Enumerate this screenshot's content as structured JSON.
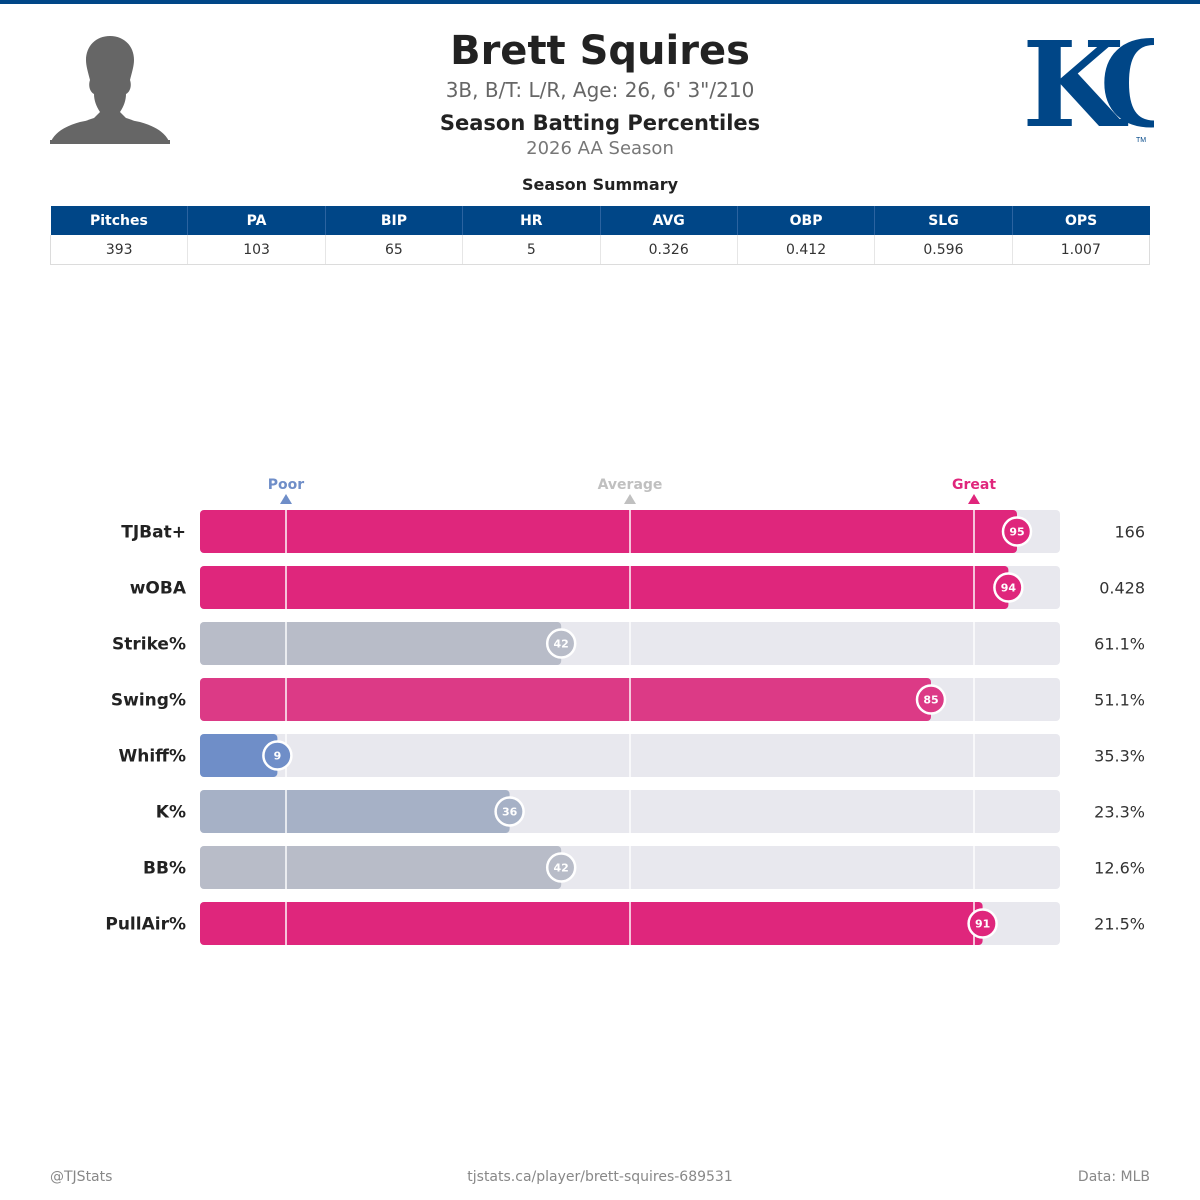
{
  "header": {
    "name": "Brett Squires",
    "bio": "3B, B/T: L/R, Age: 26, 6' 3\"/210",
    "report_title": "Season Batting Percentiles",
    "report_subtitle": "2026 AA Season",
    "logo_text": "KC",
    "logo_tm": "TM"
  },
  "summary": {
    "title": "Season Summary",
    "columns": [
      "Pitches",
      "PA",
      "BIP",
      "HR",
      "AVG",
      "OBP",
      "SLG",
      "OPS"
    ],
    "values": [
      "393",
      "103",
      "65",
      "5",
      "0.326",
      "0.412",
      "0.596",
      "1.007"
    ]
  },
  "chart_data": {
    "type": "bar",
    "orientation": "horizontal",
    "xlim": [
      0,
      100
    ],
    "reference_markers": [
      {
        "label": "Poor",
        "value": 10,
        "color": "#6f8ec8"
      },
      {
        "label": "Average",
        "value": 50,
        "color": "#c0c0c0"
      },
      {
        "label": "Great",
        "value": 90,
        "color": "#e0267c"
      }
    ],
    "categories": [
      "TJBat+",
      "wOBA",
      "Strike%",
      "Swing%",
      "Whiff%",
      "K%",
      "BB%",
      "PullAir%"
    ],
    "percentiles": [
      95,
      94,
      42,
      85,
      9,
      36,
      42,
      91
    ],
    "stat_values": [
      "166",
      "0.428",
      "61.1%",
      "51.1%",
      "35.3%",
      "23.3%",
      "12.6%",
      "21.5%"
    ],
    "bar_colors": [
      "#df267c",
      "#df267c",
      "#b8bcc8",
      "#dc3a86",
      "#6f8ec8",
      "#a6b1c6",
      "#b8bcc8",
      "#df267c"
    ],
    "track_color": "#e8e8ee"
  },
  "footer": {
    "left": "@TJStats",
    "center": "tjstats.ca/player/brett-squires-689531",
    "right": "Data: MLB"
  },
  "colors": {
    "accent": "#004687",
    "great": "#e0267c",
    "poor": "#6f8ec8"
  }
}
